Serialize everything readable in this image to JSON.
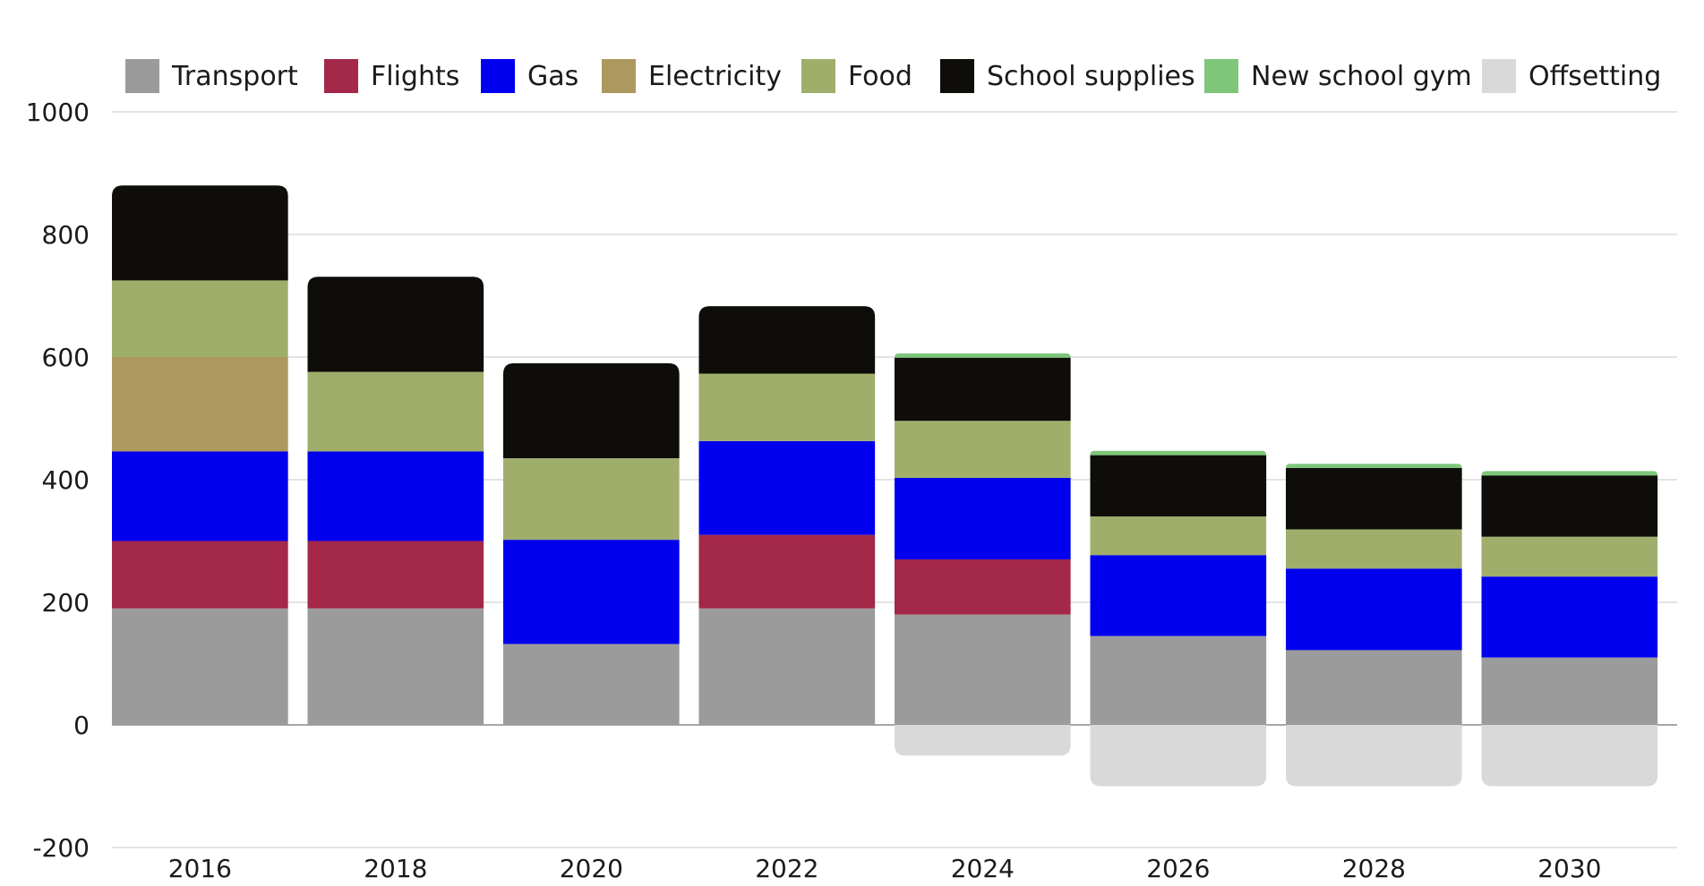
{
  "chart_data": {
    "type": "bar",
    "stacked": true,
    "categories": [
      "2016",
      "2018",
      "2020",
      "2022",
      "2024",
      "2026",
      "2028",
      "2030"
    ],
    "series": [
      {
        "name": "Transport",
        "color": "#9b9b9b",
        "values": [
          190,
          190,
          132,
          190,
          180,
          145,
          122,
          110
        ]
      },
      {
        "name": "Flights",
        "color": "#a3284a",
        "values": [
          110,
          110,
          0,
          120,
          90,
          0,
          0,
          0
        ]
      },
      {
        "name": "Gas",
        "color": "#0000ee",
        "values": [
          146,
          146,
          170,
          153,
          133,
          132,
          133,
          132
        ]
      },
      {
        "name": "Electricity",
        "color": "#ad985f",
        "values": [
          154,
          0,
          0,
          0,
          0,
          0,
          0,
          0
        ]
      },
      {
        "name": "Food",
        "color": "#a0ae6c",
        "values": [
          125,
          130,
          133,
          110,
          93,
          63,
          64,
          65
        ]
      },
      {
        "name": "School supplies",
        "color": "#0e0d09",
        "values": [
          155,
          155,
          155,
          110,
          103,
          100,
          100,
          100
        ]
      },
      {
        "name": "New school gym",
        "color": "#7dc67a",
        "values": [
          0,
          0,
          0,
          0,
          7,
          7,
          7,
          7
        ]
      },
      {
        "name": "Offsetting",
        "color": "#d9d9d9",
        "values": [
          0,
          0,
          0,
          0,
          -50,
          -100,
          -100,
          -100
        ]
      }
    ],
    "ylim": [
      -200,
      1000
    ],
    "yticks": [
      1000,
      800,
      600,
      400,
      200,
      0,
      -200
    ],
    "ytick_labels": [
      "1000",
      "800",
      "600",
      "400",
      "200",
      "0",
      "-200"
    ],
    "grid": true,
    "legend": "top",
    "xlabel": "",
    "ylabel": "",
    "title": ""
  }
}
